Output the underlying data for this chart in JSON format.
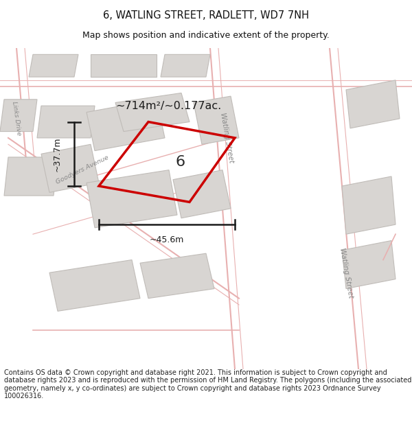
{
  "title": "6, WATLING STREET, RADLETT, WD7 7NH",
  "subtitle": "Map shows position and indicative extent of the property.",
  "footer": "Contains OS data © Crown copyright and database right 2021. This information is subject to Crown copyright and database rights 2023 and is reproduced with the permission of HM Land Registry. The polygons (including the associated geometry, namely x, y co-ordinates) are subject to Crown copyright and database rights 2023 Ordnance Survey 100026316.",
  "area_text": "~714m²/~0.177ac.",
  "label_number": "6",
  "dim_width": "~45.6m",
  "dim_height": "~37.7m",
  "bg_map": "#f0eeea",
  "bg_white": "#ffffff",
  "plot_stroke": "#cc0000",
  "building_fill": "#d8d5d2",
  "building_stroke": "#c0bcb8",
  "road_line": "#e8b0b0",
  "street_label_color": "#888888",
  "text_color": "#111111",
  "footer_color": "#222222",
  "title_fontsize": 10.5,
  "subtitle_fontsize": 9,
  "footer_fontsize": 7.0
}
